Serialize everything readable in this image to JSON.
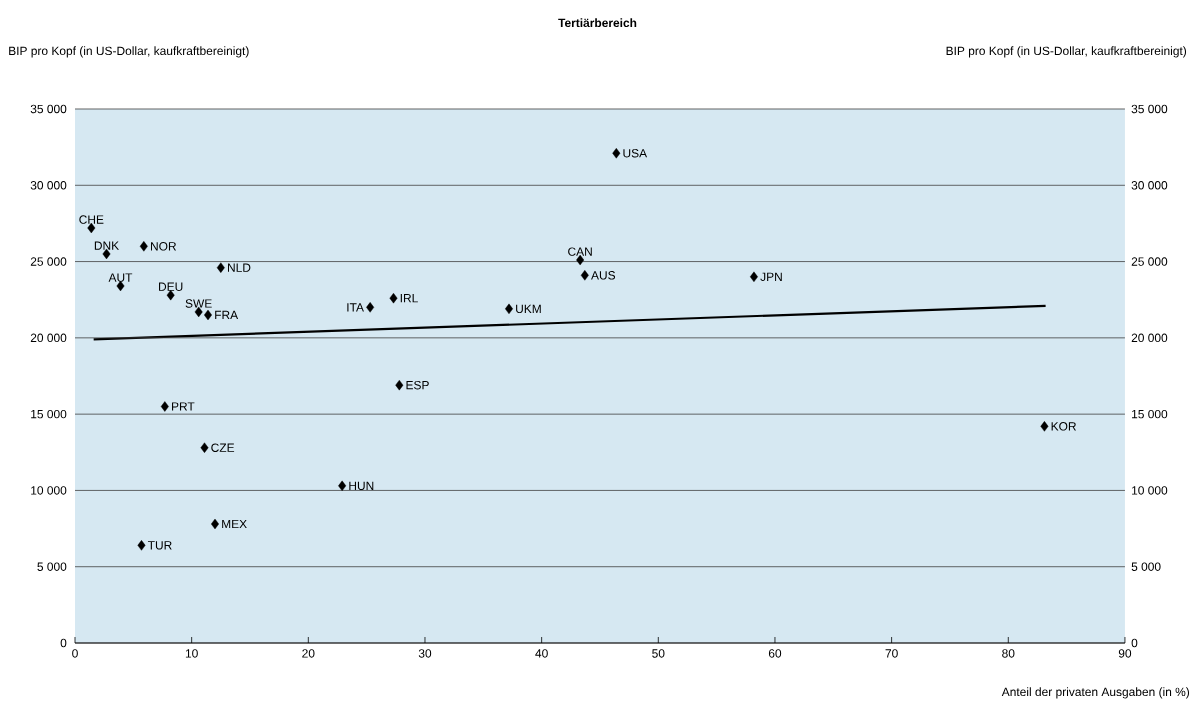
{
  "chart_data": {
    "type": "scatter",
    "title": "Tertiärbereich",
    "ylabel": "BIP pro Kopf (in US-Dollar, kaufkraftbereinigt)",
    "y2label": "BIP pro Kopf (in US-Dollar, kaufkraftbereinigt)",
    "xlabel": "Anteil der privaten Ausgaben (in %)",
    "xlim": [
      0,
      90
    ],
    "xticks": [
      0,
      10,
      20,
      30,
      40,
      50,
      60,
      70,
      80,
      90
    ],
    "ylim": [
      0,
      35000
    ],
    "yticks": [
      0,
      {
        "value": 5000,
        "label": "5 000"
      },
      {
        "value": 10000,
        "label": "10 000"
      },
      {
        "value": 15000,
        "label": "15 000"
      },
      {
        "value": 20000,
        "label": "20 000"
      },
      {
        "value": 25000,
        "label": "25 000"
      },
      {
        "value": 30000,
        "label": "30 000"
      },
      {
        "value": 35000,
        "label": "35 000"
      }
    ],
    "y2lim": [
      0,
      35000
    ],
    "y2ticks": [
      0,
      {
        "value": 5000,
        "label": "5 000"
      },
      {
        "value": 10000,
        "label": "10 000"
      },
      {
        "value": 15000,
        "label": "15 000"
      },
      {
        "value": 20000,
        "label": "20 000"
      },
      {
        "value": 25000,
        "label": "25 000"
      },
      {
        "value": 30000,
        "label": "30 000"
      },
      {
        "value": 35000,
        "label": "35 000"
      }
    ],
    "grid": "y",
    "marker": "diamond",
    "series": [
      {
        "color": "#000000",
        "x": [
          1.4,
          2.7,
          5.9,
          3.9,
          8.2,
          12.5,
          10.6,
          11.4,
          25.3,
          27.3,
          37.2,
          43.3,
          43.7,
          46.4,
          58.2,
          27.8,
          7.7,
          11.1,
          22.9,
          12.0,
          5.7,
          83.1
        ],
        "values": [
          27200,
          25500,
          26000,
          23400,
          22800,
          24600,
          21700,
          21500,
          22000,
          22600,
          21900,
          25100,
          24100,
          32100,
          24000,
          16900,
          15500,
          12800,
          10300,
          7800,
          6400,
          14200
        ]
      },
      {
        "type": "line",
        "color": "#000000",
        "marker": "none",
        "line_style": "solid",
        "x": [
          1.6,
          83.2
        ],
        "values": [
          19900,
          22100
        ]
      }
    ],
    "annotations": [
      {
        "text": "CHE",
        "x": 1.4,
        "y": 27200
      },
      {
        "text": "DNK",
        "x": 2.7,
        "y": 25500
      },
      {
        "text": "NOR",
        "x": 5.9,
        "y": 26000
      },
      {
        "text": "AUT",
        "x": 3.9,
        "y": 23400
      },
      {
        "text": "DEU",
        "x": 8.2,
        "y": 22800
      },
      {
        "text": "NLD",
        "x": 12.5,
        "y": 24600
      },
      {
        "text": "SWE",
        "x": 10.6,
        "y": 21700
      },
      {
        "text": "FRA",
        "x": 11.4,
        "y": 21500
      },
      {
        "text": "ITA",
        "x": 25.3,
        "y": 22000
      },
      {
        "text": "IRL",
        "x": 27.3,
        "y": 22600
      },
      {
        "text": "UKM",
        "x": 37.2,
        "y": 21900
      },
      {
        "text": "CAN",
        "x": 43.3,
        "y": 25100
      },
      {
        "text": "AUS",
        "x": 43.7,
        "y": 24100
      },
      {
        "text": "USA",
        "x": 46.4,
        "y": 32100
      },
      {
        "text": "JPN",
        "x": 58.2,
        "y": 24000
      },
      {
        "text": "ESP",
        "x": 27.8,
        "y": 16900
      },
      {
        "text": "PRT",
        "x": 7.7,
        "y": 15500
      },
      {
        "text": "CZE",
        "x": 11.1,
        "y": 12800
      },
      {
        "text": "HUN",
        "x": 22.9,
        "y": 10300
      },
      {
        "text": "MEX",
        "x": 12.0,
        "y": 7800
      },
      {
        "text": "TUR",
        "x": 5.7,
        "y": 6400
      },
      {
        "text": "KOR",
        "x": 83.1,
        "y": 14200
      }
    ]
  }
}
